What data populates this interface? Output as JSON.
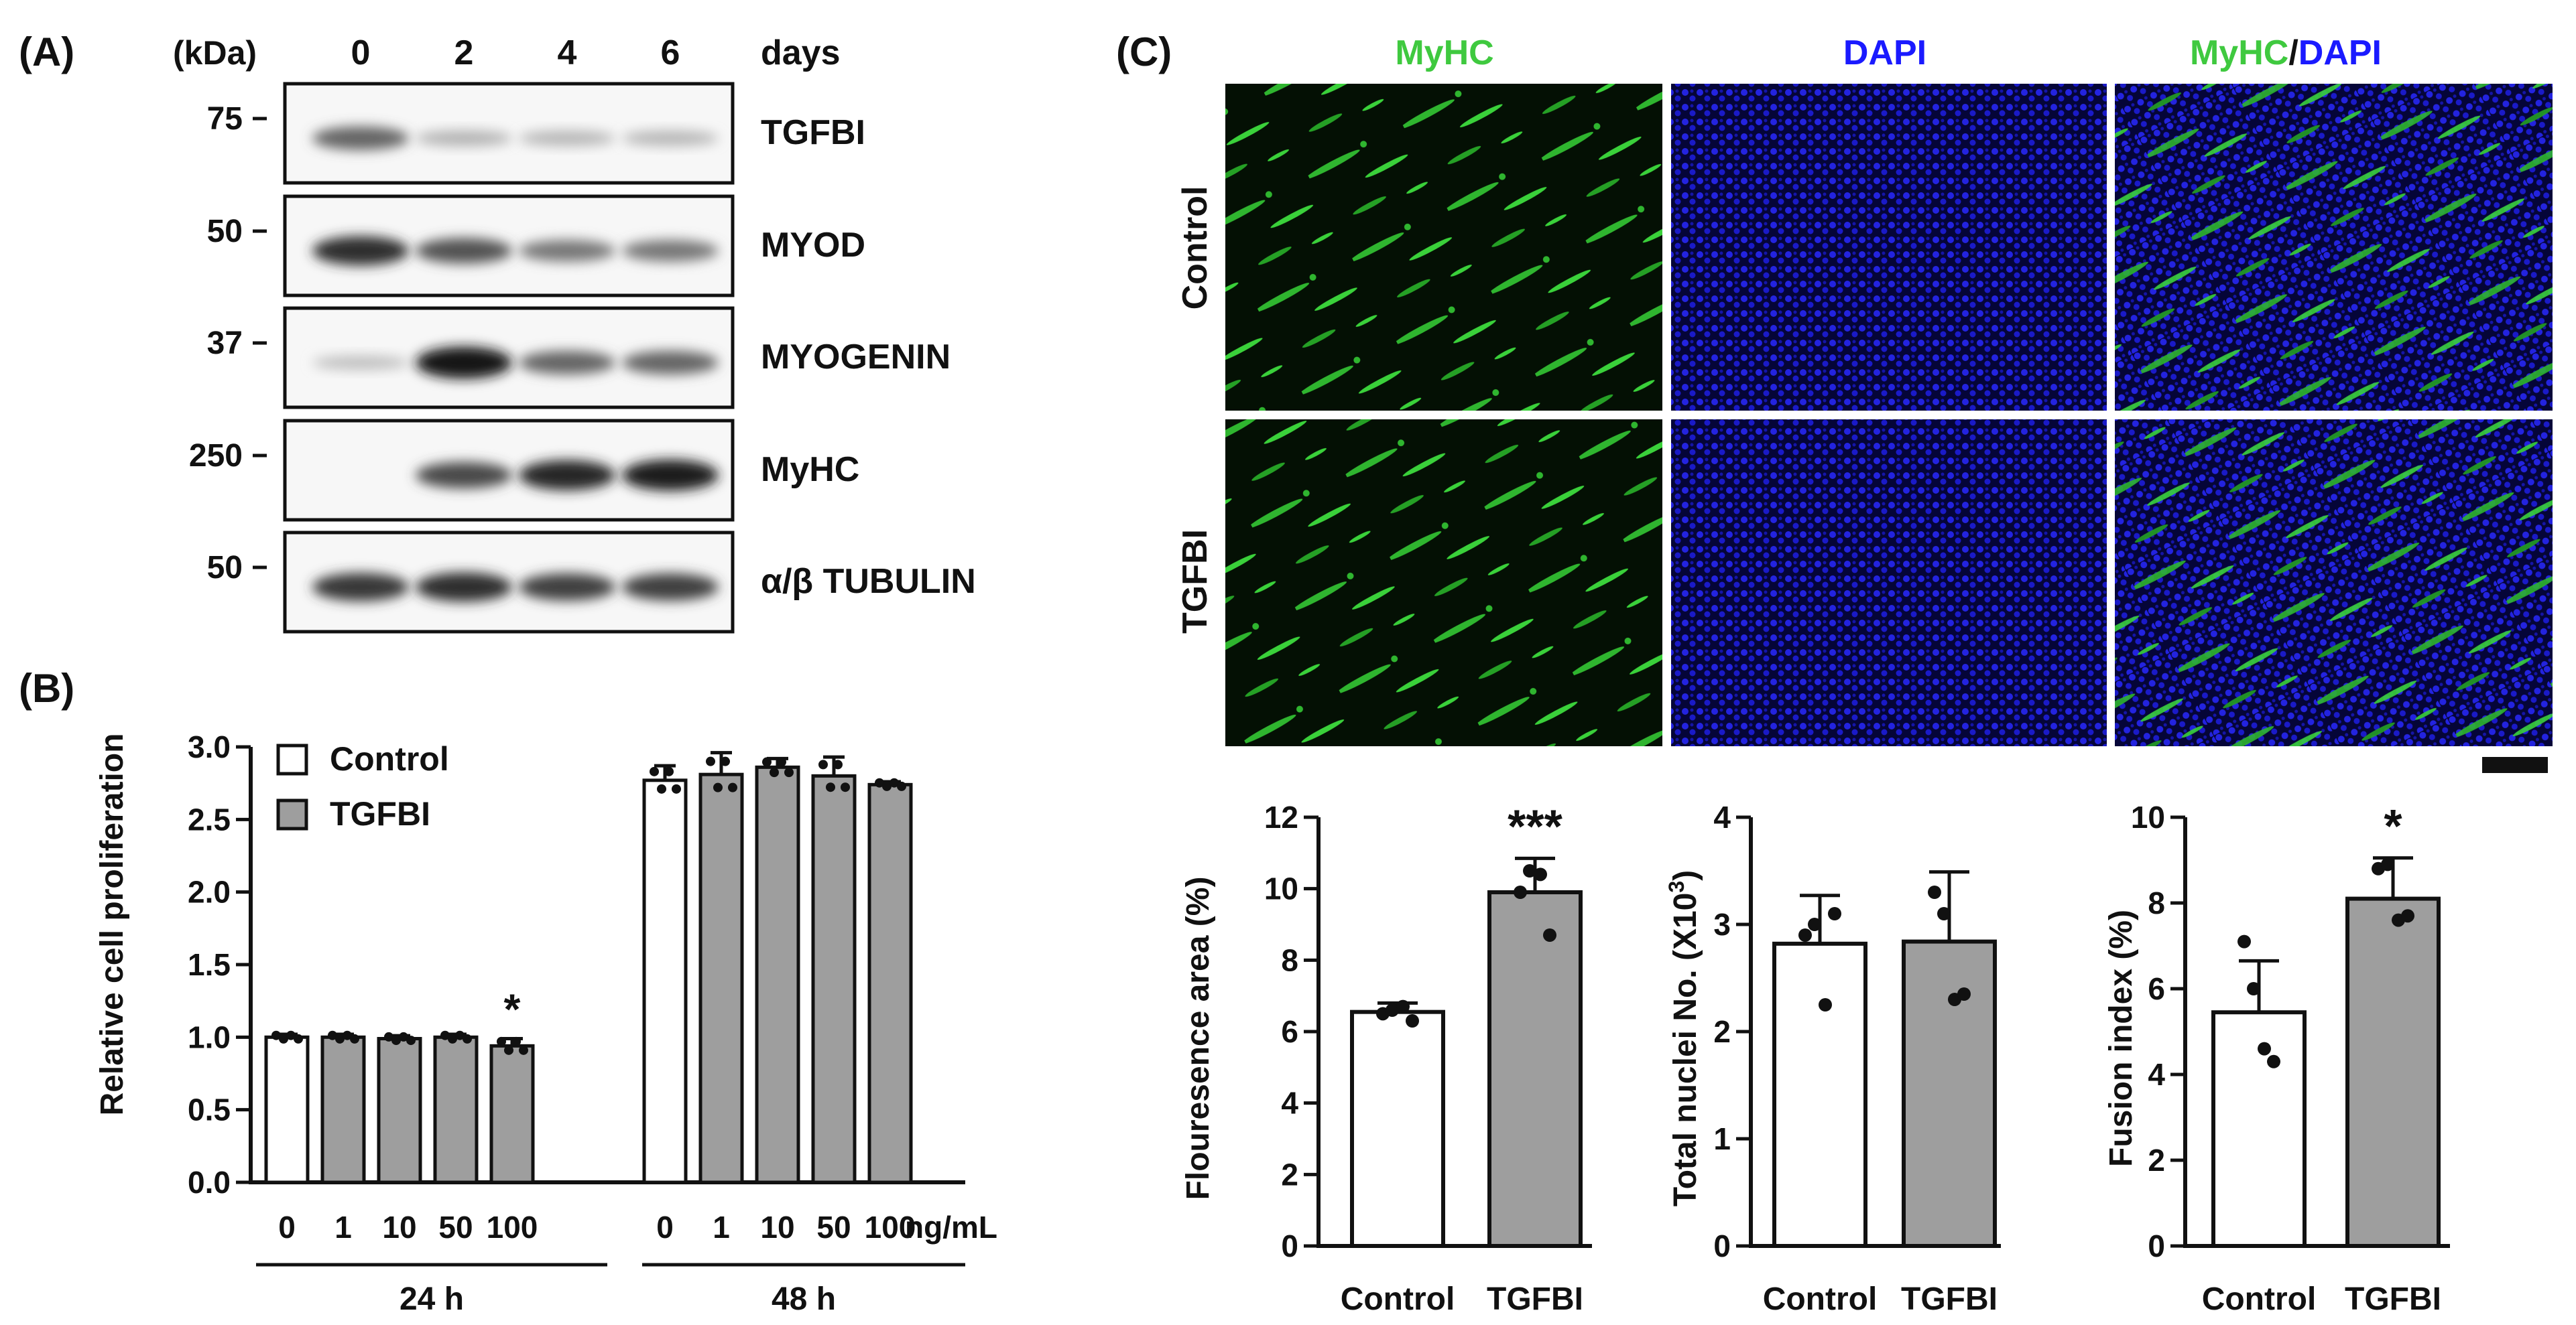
{
  "panelA": {
    "label": "(A)",
    "kda_header": "(kDa)",
    "lanes": [
      "0",
      "2",
      "4",
      "6"
    ],
    "days_label": "days",
    "blots": [
      {
        "marker": "75",
        "protein": "TGFBI",
        "intensity": [
          0.55,
          0.12,
          0.1,
          0.1
        ]
      },
      {
        "marker": "50",
        "protein": "MYOD",
        "intensity": [
          0.85,
          0.65,
          0.45,
          0.45
        ]
      },
      {
        "marker": "37",
        "protein": "MYOGENIN",
        "intensity": [
          0.05,
          1.0,
          0.55,
          0.55
        ]
      },
      {
        "marker": "250",
        "protein": "MyHC",
        "intensity": [
          0.0,
          0.7,
          0.9,
          0.95
        ]
      },
      {
        "marker": "50",
        "protein": "α/β TUBULIN",
        "intensity": [
          0.8,
          0.85,
          0.75,
          0.75
        ]
      }
    ]
  },
  "panelB": {
    "label": "(B)",
    "chart_data": {
      "type": "bar",
      "ylabel": "Relative cell proliferation",
      "ylim": [
        0,
        3.0
      ],
      "yticks": [
        "0.0",
        "0.5",
        "1.0",
        "1.5",
        "2.0",
        "2.5",
        "3.0"
      ],
      "categories": [
        "0",
        "1",
        "10",
        "50",
        "100",
        "0",
        "1",
        "10",
        "50",
        "100"
      ],
      "unit_label": "ng/mL",
      "groups": [
        "24 h",
        "48 h"
      ],
      "legend": [
        "Control",
        "TGFBI"
      ],
      "values": [
        1.0,
        1.0,
        0.99,
        1.0,
        0.94,
        2.77,
        2.81,
        2.86,
        2.8,
        2.74
      ],
      "errors": [
        0.02,
        0.02,
        0.02,
        0.02,
        0.05,
        0.1,
        0.15,
        0.06,
        0.13,
        0.02
      ],
      "treatment": [
        "Control",
        "TGFBI",
        "TGFBI",
        "TGFBI",
        "TGFBI",
        "Control",
        "TGFBI",
        "TGFBI",
        "TGFBI",
        "TGFBI"
      ],
      "significance": [
        "",
        "",
        "",
        "",
        "*",
        "",
        "",
        "",
        "",
        ""
      ]
    }
  },
  "panelC": {
    "label": "(C)",
    "image_columns": [
      "MyHC",
      "DAPI",
      "MyHC/DAPI"
    ],
    "image_rows": [
      "Control",
      "TGFBI"
    ],
    "colors": {
      "myhc": "#3fc93f",
      "dapi": "#1a1aff"
    },
    "charts": [
      {
        "type": "bar",
        "ylabel": "Flouresence area (%)",
        "ylim": [
          0,
          12
        ],
        "yticks": [
          "0",
          "2",
          "4",
          "6",
          "8",
          "10",
          "12"
        ],
        "categories": [
          "Control",
          "TGFBI"
        ],
        "values": [
          6.55,
          9.9
        ],
        "errors": [
          0.25,
          0.95
        ],
        "points": [
          [
            6.5,
            6.6,
            6.7,
            6.3
          ],
          [
            9.9,
            10.5,
            10.4,
            8.7
          ]
        ],
        "significance": [
          "",
          "***"
        ]
      },
      {
        "type": "bar",
        "ylabel": "Total nuclei No. (X10",
        "ylabel_sup": "3",
        "ylabel_end": ")",
        "ylim": [
          0,
          4
        ],
        "yticks": [
          "0",
          "1",
          "2",
          "3",
          "4"
        ],
        "categories": [
          "Control",
          "TGFBI"
        ],
        "values": [
          2.82,
          2.84
        ],
        "errors": [
          0.45,
          0.65
        ],
        "points": [
          [
            2.9,
            3.0,
            2.25,
            3.1
          ],
          [
            3.3,
            3.1,
            2.3,
            2.35
          ]
        ],
        "significance": [
          "",
          ""
        ]
      },
      {
        "type": "bar",
        "ylabel": "Fusion index (%)",
        "ylim": [
          0,
          10
        ],
        "yticks": [
          "0",
          "2",
          "4",
          "6",
          "8",
          "10"
        ],
        "categories": [
          "Control",
          "TGFBI"
        ],
        "values": [
          5.45,
          8.1
        ],
        "errors": [
          1.2,
          0.95
        ],
        "points": [
          [
            7.1,
            6.0,
            4.6,
            4.3
          ],
          [
            8.8,
            8.9,
            7.6,
            7.7
          ]
        ],
        "significance": [
          "",
          "*"
        ]
      }
    ]
  }
}
